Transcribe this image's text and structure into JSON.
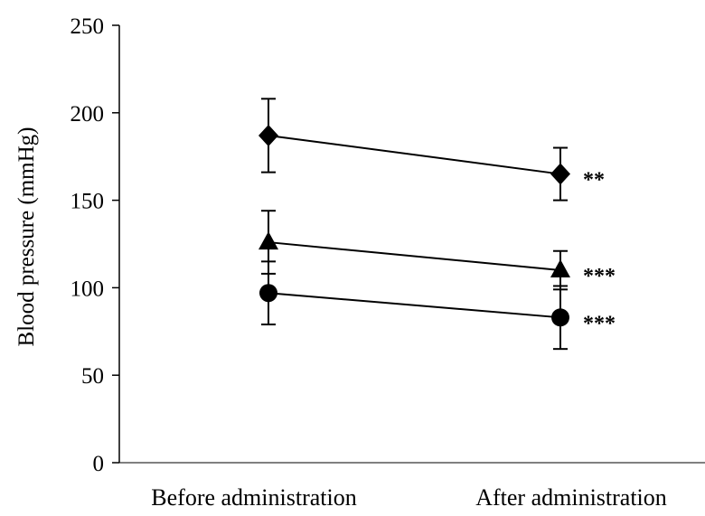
{
  "chart_data": {
    "type": "line",
    "title": "",
    "xlabel": "",
    "ylabel": "Blood pressure (mmHg)",
    "categories": [
      "Before administration",
      "After administration"
    ],
    "ylim": [
      0,
      250
    ],
    "yticks": [
      0,
      50,
      100,
      150,
      200,
      250
    ],
    "ytick_labels": [
      "0",
      "50",
      "100",
      "150",
      "200",
      "250"
    ],
    "grid": false,
    "series": [
      {
        "marker": "diamond",
        "values": [
          187,
          165
        ],
        "errors": [
          21,
          15
        ],
        "annotation": "**"
      },
      {
        "marker": "triangle",
        "values": [
          126,
          110
        ],
        "errors": [
          18,
          11
        ],
        "annotation": "***"
      },
      {
        "marker": "circle",
        "values": [
          97,
          83
        ],
        "errors": [
          18,
          18
        ],
        "annotation": "***"
      }
    ]
  }
}
